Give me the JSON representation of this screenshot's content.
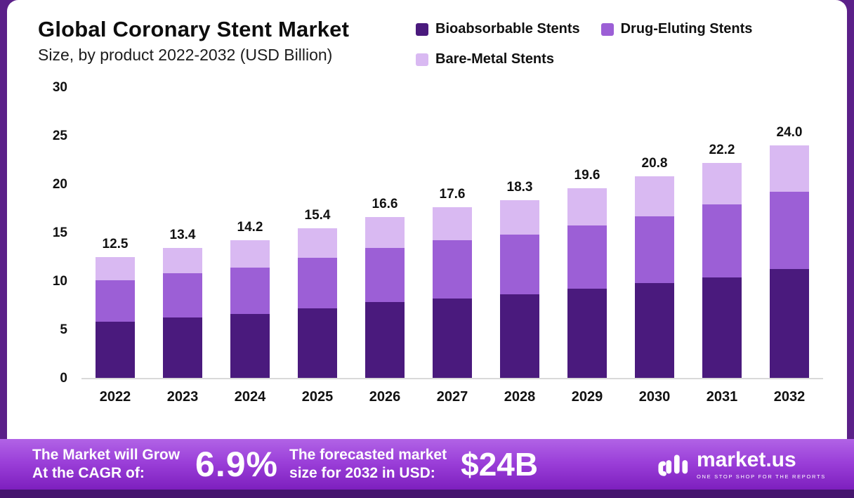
{
  "header": {
    "title": "Global Coronary Stent Market",
    "subtitle": "Size, by product 2022-2032 (USD Billion)"
  },
  "chart_data": {
    "type": "bar",
    "stacked": true,
    "title": "Global Coronary Stent Market Size, by product 2022-2032 (USD Billion)",
    "unit": "USD Billion",
    "categories": [
      "2022",
      "2023",
      "2024",
      "2025",
      "2026",
      "2027",
      "2028",
      "2029",
      "2030",
      "2031",
      "2032"
    ],
    "series": [
      {
        "name": "Bioabsorbable Stents",
        "color": "#4a1a7d",
        "values": [
          5.8,
          6.2,
          6.6,
          7.2,
          7.8,
          8.2,
          8.6,
          9.2,
          9.8,
          10.4,
          11.2
        ]
      },
      {
        "name": "Drug-Eluting Stents",
        "color": "#9c5fd6",
        "values": [
          4.3,
          4.6,
          4.8,
          5.2,
          5.6,
          6.0,
          6.2,
          6.5,
          6.9,
          7.5,
          8.0
        ]
      },
      {
        "name": "Bare-Metal Stents",
        "color": "#d9b9f2",
        "values": [
          2.4,
          2.6,
          2.8,
          3.0,
          3.2,
          3.4,
          3.5,
          3.9,
          4.1,
          4.3,
          4.8
        ]
      }
    ],
    "totals": [
      12.5,
      13.4,
      14.2,
      15.4,
      16.6,
      17.6,
      18.3,
      19.6,
      20.8,
      22.2,
      24.0
    ],
    "ylim": [
      0,
      30
    ],
    "y_ticks": [
      30,
      25,
      20,
      15,
      10,
      5,
      0
    ],
    "grid": false,
    "legend_position": "top-right"
  },
  "footer": {
    "cagr_label_line1": "The Market will Grow",
    "cagr_label_line2": "At the CAGR of:",
    "cagr_value": "6.9%",
    "forecast_label_line1": "The forecasted market",
    "forecast_label_line2": "size for 2032 in USD:",
    "forecast_value": "$24B",
    "brand_name": "market.us",
    "brand_tagline": "ONE STOP SHOP FOR THE REPORTS"
  }
}
